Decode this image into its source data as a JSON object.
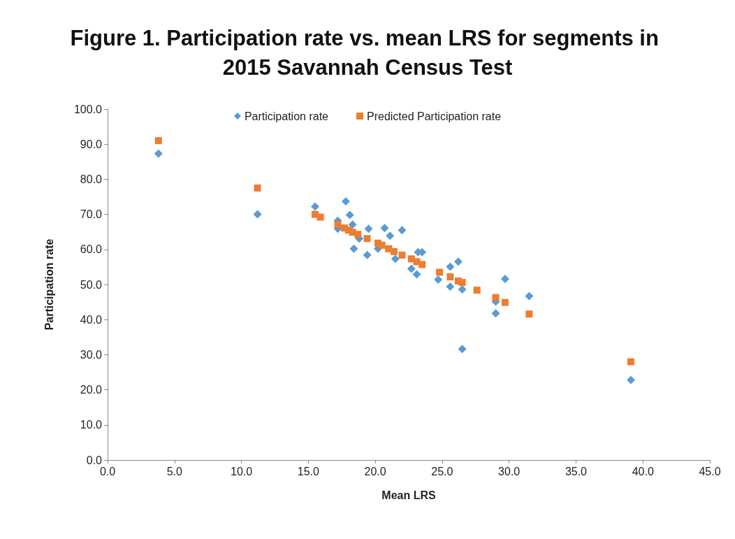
{
  "chart_data": {
    "type": "scatter",
    "title": "Figure 1. Participation rate vs. mean LRS for segments in 2015 Savannah Census Test",
    "xlabel": "Mean LRS",
    "ylabel": "Participation rate",
    "xlim": [
      0,
      45
    ],
    "ylim": [
      0,
      100
    ],
    "xticks": [
      {
        "value": 0,
        "label": "0.0"
      },
      {
        "value": 5,
        "label": "5.0"
      },
      {
        "value": 10,
        "label": "10.0"
      },
      {
        "value": 15,
        "label": "15.0"
      },
      {
        "value": 20,
        "label": "20.0"
      },
      {
        "value": 25,
        "label": "25.0"
      },
      {
        "value": 30,
        "label": "30.0"
      },
      {
        "value": 35,
        "label": "35.0"
      },
      {
        "value": 40,
        "label": "40.0"
      },
      {
        "value": 45,
        "label": "45.0"
      }
    ],
    "yticks": [
      {
        "value": 0,
        "label": "0.0"
      },
      {
        "value": 10,
        "label": "10.0"
      },
      {
        "value": 20,
        "label": "20.0"
      },
      {
        "value": 30,
        "label": "30.0"
      },
      {
        "value": 40,
        "label": "40.0"
      },
      {
        "value": 50,
        "label": "50.0"
      },
      {
        "value": 60,
        "label": "60.0"
      },
      {
        "value": 70,
        "label": "70.0"
      },
      {
        "value": 80,
        "label": "80.0"
      },
      {
        "value": 90,
        "label": "90.0"
      },
      {
        "value": 100,
        "label": "100.0"
      }
    ],
    "grid": false,
    "legend": "top",
    "series": [
      {
        "name": "Participation rate",
        "color": "#5b9bd5",
        "marker": "diamond",
        "x": [
          3.8,
          11.2,
          15.5,
          17.8,
          18.1,
          17.2,
          18.3,
          17.2,
          19.5,
          20.7,
          22.0,
          21.1,
          18.8,
          18.4,
          19.4,
          20.2,
          21.5,
          23.2,
          23.5,
          22.7,
          23.1,
          24.7,
          26.2,
          25.6,
          25.6,
          26.5,
          26.5,
          27.6,
          29.7,
          29.0,
          29.0,
          31.5,
          39.1
        ],
        "values": [
          87.3,
          70.0,
          72.2,
          73.7,
          69.8,
          68.2,
          67.1,
          65.9,
          65.9,
          66.1,
          65.5,
          63.9,
          63.1,
          60.2,
          58.4,
          60.2,
          57.3,
          59.2,
          59.2,
          54.5,
          52.9,
          51.4,
          56.5,
          55.1,
          49.4,
          48.6,
          31.6,
          null,
          51.6,
          45.1,
          41.8,
          46.7,
          22.8
        ]
      },
      {
        "name": "Predicted Participation rate",
        "color": "#ed7d31",
        "marker": "square",
        "x": [
          3.8,
          11.2,
          15.5,
          15.9,
          17.2,
          17.7,
          18.0,
          18.3,
          18.7,
          19.4,
          20.2,
          20.5,
          21.0,
          21.4,
          22.0,
          22.7,
          23.1,
          23.5,
          24.8,
          25.6,
          26.2,
          26.5,
          27.6,
          29.0,
          29.7,
          31.5,
          39.1
        ],
        "values": [
          91.0,
          77.5,
          70.0,
          69.2,
          67.1,
          66.1,
          65.5,
          64.9,
          64.3,
          63.1,
          61.8,
          61.2,
          60.2,
          59.4,
          58.4,
          57.3,
          56.5,
          55.7,
          53.5,
          52.2,
          51.0,
          50.6,
          48.4,
          46.3,
          44.9,
          41.6,
          28.0
        ]
      }
    ]
  }
}
